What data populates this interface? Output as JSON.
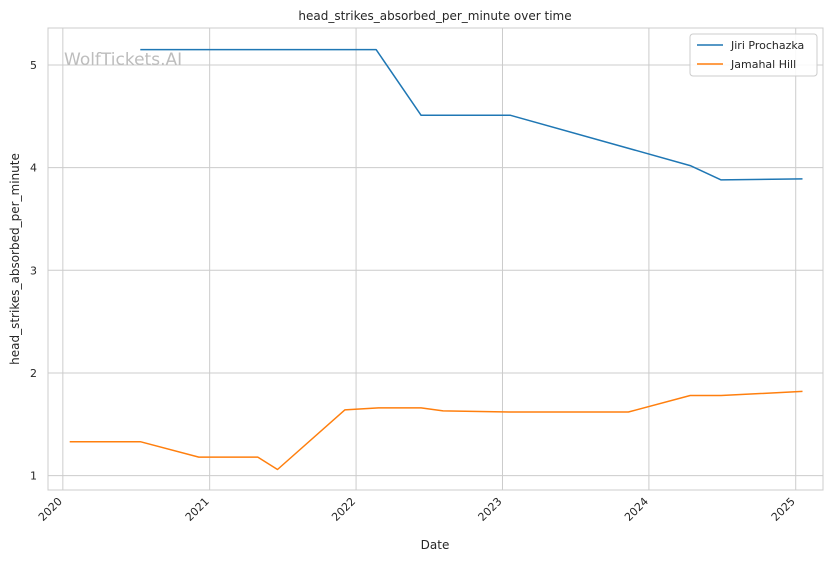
{
  "watermark": "WolfTickets.AI",
  "chart_data": {
    "type": "line",
    "title": "head_strikes_absorbed_per_minute over time",
    "xlabel": "Date",
    "ylabel": "head_strikes_absorbed_per_minute",
    "xlim": [
      "2019-11-25",
      "2025-03-10"
    ],
    "ylim": [
      0.86,
      5.36
    ],
    "x_ticks": [
      "2020",
      "2021",
      "2022",
      "2023",
      "2024",
      "2025"
    ],
    "y_ticks": [
      "1",
      "2",
      "3",
      "4",
      "5"
    ],
    "grid": true,
    "legend_position": "top-right",
    "series": [
      {
        "name": "Jiri Prochazka",
        "color": "#1f77b4",
        "points": [
          [
            "2020-07-12",
            5.15
          ],
          [
            "2022-02-20",
            5.15
          ],
          [
            "2022-06-12",
            4.51
          ],
          [
            "2023-01-21",
            4.51
          ],
          [
            "2024-04-13",
            4.02
          ],
          [
            "2024-06-29",
            3.88
          ],
          [
            "2025-01-18",
            3.89
          ]
        ]
      },
      {
        "name": "Jamahal Hill",
        "color": "#ff7f0e",
        "points": [
          [
            "2020-01-18",
            1.33
          ],
          [
            "2020-07-12",
            1.33
          ],
          [
            "2020-12-05",
            1.18
          ],
          [
            "2021-05-01",
            1.18
          ],
          [
            "2021-06-19",
            1.06
          ],
          [
            "2021-12-04",
            1.64
          ],
          [
            "2022-02-26",
            1.66
          ],
          [
            "2022-06-12",
            1.66
          ],
          [
            "2022-08-06",
            1.63
          ],
          [
            "2023-01-21",
            1.62
          ],
          [
            "2023-11-11",
            1.62
          ],
          [
            "2024-04-13",
            1.78
          ],
          [
            "2024-06-29",
            1.78
          ],
          [
            "2025-01-18",
            1.82
          ]
        ]
      }
    ]
  }
}
